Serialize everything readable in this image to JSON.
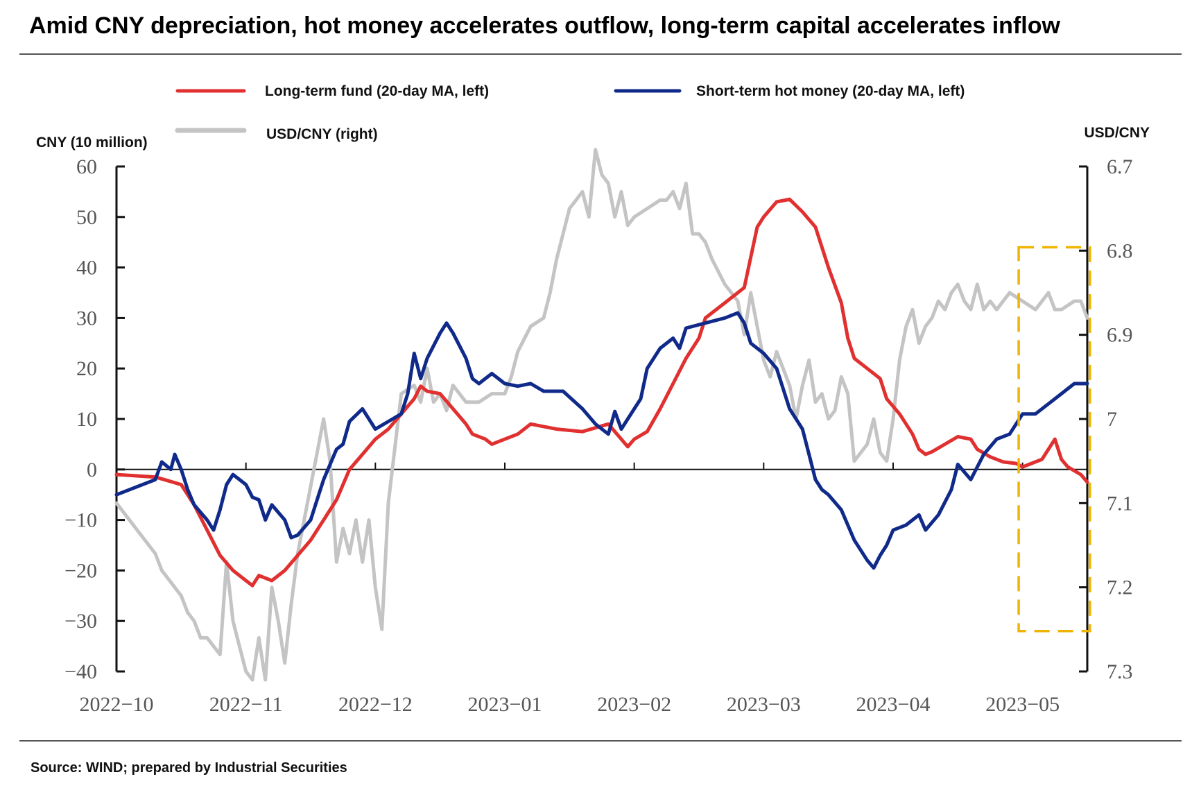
{
  "title": "Amid CNY depreciation, hot money accelerates outflow, long-term capital accelerates inflow",
  "source": "Source: WIND; prepared by Industrial Securities",
  "colors": {
    "long_term": "#e03030",
    "hot_money": "#102a8a",
    "usdcny": "#c4c4c4",
    "highlight": "#f0b400",
    "axis": "#111111"
  },
  "chart_data": {
    "type": "line",
    "left_axis_label": "CNY (10 million)",
    "right_axis_label": "USD/CNY",
    "left_ticks": [
      "60",
      "50",
      "40",
      "30",
      "20",
      "10",
      "0",
      "−10",
      "−20",
      "−30",
      "−40"
    ],
    "right_ticks": [
      "6.7",
      "6.8",
      "6.9",
      "7",
      "7.1",
      "7.2",
      "7.3"
    ],
    "ylim_left": [
      -40,
      60
    ],
    "ylim_right": [
      7.3,
      6.7
    ],
    "right_axis_inverted": true,
    "x_ticks": [
      "2022−10",
      "2022−11",
      "2022−12",
      "2023−01",
      "2023−02",
      "2023−03",
      "2023−04",
      "2023−05"
    ],
    "x_range": [
      0,
      7.5
    ],
    "legend": [
      {
        "label": "Long-term fund (20-day MA, left)",
        "series": "long_term"
      },
      {
        "label": "Short-term hot money (20-day MA, left)",
        "series": "hot_money"
      },
      {
        "label": "USD/CNY (right)",
        "series": "usdcny"
      }
    ],
    "highlight_box": {
      "x": [
        6.97,
        7.52
      ],
      "y_left": [
        -32,
        44
      ]
    },
    "series": [
      {
        "key": "long_term",
        "name": "Long-term fund (20-day MA, left)",
        "axis": "left",
        "points": [
          [
            0,
            -1
          ],
          [
            0.3,
            -1.5
          ],
          [
            0.5,
            -3
          ],
          [
            0.6,
            -7
          ],
          [
            0.7,
            -12
          ],
          [
            0.8,
            -17
          ],
          [
            0.9,
            -20
          ],
          [
            1.0,
            -22
          ],
          [
            1.05,
            -23
          ],
          [
            1.1,
            -21
          ],
          [
            1.2,
            -22
          ],
          [
            1.3,
            -20
          ],
          [
            1.4,
            -17
          ],
          [
            1.5,
            -14
          ],
          [
            1.6,
            -10
          ],
          [
            1.7,
            -6
          ],
          [
            1.8,
            0
          ],
          [
            1.9,
            3
          ],
          [
            2.0,
            6
          ],
          [
            2.1,
            8
          ],
          [
            2.2,
            11
          ],
          [
            2.3,
            14
          ],
          [
            2.35,
            16.5
          ],
          [
            2.4,
            15.5
          ],
          [
            2.5,
            15
          ],
          [
            2.55,
            13.5
          ],
          [
            2.6,
            12
          ],
          [
            2.7,
            9
          ],
          [
            2.75,
            7
          ],
          [
            2.85,
            6
          ],
          [
            2.9,
            5
          ],
          [
            3.0,
            6
          ],
          [
            3.1,
            7
          ],
          [
            3.2,
            9
          ],
          [
            3.3,
            8.5
          ],
          [
            3.4,
            8
          ],
          [
            3.6,
            7.5
          ],
          [
            3.8,
            9
          ],
          [
            3.9,
            6
          ],
          [
            3.95,
            4.5
          ],
          [
            4.0,
            6
          ],
          [
            4.1,
            7.5
          ],
          [
            4.2,
            12
          ],
          [
            4.3,
            17
          ],
          [
            4.4,
            22
          ],
          [
            4.5,
            26
          ],
          [
            4.55,
            30
          ],
          [
            4.7,
            33
          ],
          [
            4.85,
            36
          ],
          [
            4.95,
            48
          ],
          [
            5.0,
            50
          ],
          [
            5.1,
            53
          ],
          [
            5.2,
            53.5
          ],
          [
            5.3,
            51
          ],
          [
            5.4,
            48
          ],
          [
            5.5,
            40
          ],
          [
            5.6,
            33
          ],
          [
            5.65,
            26
          ],
          [
            5.7,
            22
          ],
          [
            5.8,
            20
          ],
          [
            5.9,
            18
          ],
          [
            5.95,
            14
          ],
          [
            6.05,
            11
          ],
          [
            6.1,
            9
          ],
          [
            6.15,
            7
          ],
          [
            6.2,
            4
          ],
          [
            6.25,
            3
          ],
          [
            6.3,
            3.5
          ],
          [
            6.4,
            5
          ],
          [
            6.5,
            6.5
          ],
          [
            6.6,
            6
          ],
          [
            6.65,
            4
          ],
          [
            6.75,
            2.5
          ],
          [
            6.85,
            1.5
          ],
          [
            6.95,
            1.2
          ],
          [
            7.0,
            0.5
          ],
          [
            7.05,
            1
          ],
          [
            7.15,
            2
          ],
          [
            7.25,
            6
          ],
          [
            7.3,
            2
          ],
          [
            7.35,
            0.5
          ],
          [
            7.45,
            -1
          ],
          [
            7.5,
            -2.5
          ]
        ]
      },
      {
        "key": "hot_money",
        "name": "Short-term hot money (20-day MA, left)",
        "axis": "left",
        "points": [
          [
            0,
            -5
          ],
          [
            0.3,
            -2
          ],
          [
            0.35,
            1.5
          ],
          [
            0.42,
            0
          ],
          [
            0.45,
            3
          ],
          [
            0.5,
            0
          ],
          [
            0.55,
            -4
          ],
          [
            0.6,
            -7
          ],
          [
            0.7,
            -10
          ],
          [
            0.75,
            -12
          ],
          [
            0.8,
            -8
          ],
          [
            0.85,
            -3
          ],
          [
            0.9,
            -1
          ],
          [
            1.0,
            -3
          ],
          [
            1.05,
            -5.5
          ],
          [
            1.1,
            -6
          ],
          [
            1.15,
            -10
          ],
          [
            1.2,
            -7
          ],
          [
            1.3,
            -10
          ],
          [
            1.35,
            -13.5
          ],
          [
            1.4,
            -13
          ],
          [
            1.5,
            -10
          ],
          [
            1.55,
            -6
          ],
          [
            1.6,
            -2
          ],
          [
            1.7,
            4
          ],
          [
            1.75,
            5
          ],
          [
            1.8,
            9.5
          ],
          [
            1.9,
            12
          ],
          [
            2.0,
            8
          ],
          [
            2.1,
            9.5
          ],
          [
            2.2,
            11
          ],
          [
            2.25,
            15
          ],
          [
            2.3,
            23
          ],
          [
            2.35,
            18
          ],
          [
            2.4,
            22
          ],
          [
            2.5,
            27
          ],
          [
            2.55,
            29
          ],
          [
            2.6,
            27
          ],
          [
            2.7,
            22
          ],
          [
            2.75,
            18
          ],
          [
            2.8,
            17
          ],
          [
            2.9,
            19
          ],
          [
            3.0,
            17
          ],
          [
            3.1,
            16.5
          ],
          [
            3.2,
            17
          ],
          [
            3.3,
            15.5
          ],
          [
            3.45,
            15.5
          ],
          [
            3.6,
            12
          ],
          [
            3.7,
            9
          ],
          [
            3.8,
            7
          ],
          [
            3.85,
            11.5
          ],
          [
            3.9,
            8
          ],
          [
            3.95,
            10
          ],
          [
            4.05,
            14
          ],
          [
            4.1,
            20
          ],
          [
            4.2,
            24
          ],
          [
            4.3,
            26
          ],
          [
            4.35,
            24
          ],
          [
            4.4,
            28
          ],
          [
            4.55,
            29
          ],
          [
            4.7,
            30
          ],
          [
            4.8,
            31
          ],
          [
            4.85,
            29
          ],
          [
            4.9,
            25
          ],
          [
            5.0,
            23
          ],
          [
            5.1,
            20
          ],
          [
            5.2,
            12
          ],
          [
            5.3,
            8
          ],
          [
            5.35,
            3
          ],
          [
            5.4,
            -2
          ],
          [
            5.45,
            -4
          ],
          [
            5.5,
            -5
          ],
          [
            5.6,
            -8
          ],
          [
            5.7,
            -14
          ],
          [
            5.8,
            -18
          ],
          [
            5.85,
            -19.5
          ],
          [
            5.9,
            -17
          ],
          [
            5.95,
            -15
          ],
          [
            6.0,
            -12
          ],
          [
            6.1,
            -11
          ],
          [
            6.2,
            -9
          ],
          [
            6.25,
            -12
          ],
          [
            6.35,
            -9
          ],
          [
            6.45,
            -4
          ],
          [
            6.5,
            1
          ],
          [
            6.6,
            -2
          ],
          [
            6.7,
            3
          ],
          [
            6.8,
            6
          ],
          [
            6.9,
            7
          ],
          [
            7.0,
            11
          ],
          [
            7.1,
            11
          ],
          [
            7.2,
            13
          ],
          [
            7.3,
            15
          ],
          [
            7.4,
            17
          ],
          [
            7.5,
            17
          ]
        ]
      },
      {
        "key": "usdcny",
        "name": "USD/CNY (right)",
        "axis": "right",
        "points": [
          [
            0,
            7.1
          ],
          [
            0.1,
            7.12
          ],
          [
            0.2,
            7.14
          ],
          [
            0.3,
            7.16
          ],
          [
            0.35,
            7.18
          ],
          [
            0.4,
            7.19
          ],
          [
            0.45,
            7.2
          ],
          [
            0.5,
            7.21
          ],
          [
            0.55,
            7.23
          ],
          [
            0.6,
            7.24
          ],
          [
            0.65,
            7.26
          ],
          [
            0.7,
            7.26
          ],
          [
            0.75,
            7.27
          ],
          [
            0.8,
            7.28
          ],
          [
            0.85,
            7.17
          ],
          [
            0.9,
            7.24
          ],
          [
            0.95,
            7.27
          ],
          [
            1.0,
            7.3
          ],
          [
            1.05,
            7.31
          ],
          [
            1.1,
            7.26
          ],
          [
            1.15,
            7.31
          ],
          [
            1.2,
            7.2
          ],
          [
            1.25,
            7.24
          ],
          [
            1.3,
            7.29
          ],
          [
            1.35,
            7.22
          ],
          [
            1.4,
            7.16
          ],
          [
            1.5,
            7.08
          ],
          [
            1.6,
            7.0
          ],
          [
            1.65,
            7.05
          ],
          [
            1.7,
            7.17
          ],
          [
            1.75,
            7.13
          ],
          [
            1.8,
            7.16
          ],
          [
            1.85,
            7.12
          ],
          [
            1.9,
            7.17
          ],
          [
            1.95,
            7.12
          ],
          [
            2.0,
            7.2
          ],
          [
            2.05,
            7.25
          ],
          [
            2.1,
            7.1
          ],
          [
            2.2,
            6.97
          ],
          [
            2.3,
            6.96
          ],
          [
            2.35,
            6.98
          ],
          [
            2.4,
            6.94
          ],
          [
            2.45,
            6.98
          ],
          [
            2.5,
            6.97
          ],
          [
            2.55,
            6.99
          ],
          [
            2.6,
            6.96
          ],
          [
            2.7,
            6.98
          ],
          [
            2.8,
            6.98
          ],
          [
            2.9,
            6.97
          ],
          [
            3.0,
            6.97
          ],
          [
            3.05,
            6.95
          ],
          [
            3.1,
            6.92
          ],
          [
            3.2,
            6.89
          ],
          [
            3.3,
            6.88
          ],
          [
            3.35,
            6.85
          ],
          [
            3.4,
            6.81
          ],
          [
            3.5,
            6.75
          ],
          [
            3.6,
            6.73
          ],
          [
            3.65,
            6.76
          ],
          [
            3.7,
            6.68
          ],
          [
            3.75,
            6.71
          ],
          [
            3.8,
            6.72
          ],
          [
            3.85,
            6.76
          ],
          [
            3.9,
            6.73
          ],
          [
            3.95,
            6.77
          ],
          [
            4.0,
            6.76
          ],
          [
            4.1,
            6.75
          ],
          [
            4.2,
            6.74
          ],
          [
            4.25,
            6.74
          ],
          [
            4.3,
            6.73
          ],
          [
            4.35,
            6.75
          ],
          [
            4.4,
            6.72
          ],
          [
            4.45,
            6.78
          ],
          [
            4.5,
            6.78
          ],
          [
            4.55,
            6.79
          ],
          [
            4.6,
            6.81
          ],
          [
            4.7,
            6.84
          ],
          [
            4.8,
            6.86
          ],
          [
            4.85,
            6.9
          ],
          [
            4.9,
            6.85
          ],
          [
            4.95,
            6.89
          ],
          [
            5.0,
            6.93
          ],
          [
            5.05,
            6.95
          ],
          [
            5.1,
            6.92
          ],
          [
            5.15,
            6.94
          ],
          [
            5.2,
            6.96
          ],
          [
            5.25,
            7.0
          ],
          [
            5.3,
            6.96
          ],
          [
            5.35,
            6.93
          ],
          [
            5.4,
            6.98
          ],
          [
            5.45,
            6.97
          ],
          [
            5.5,
            7.0
          ],
          [
            5.55,
            6.99
          ],
          [
            5.6,
            6.95
          ],
          [
            5.65,
            6.97
          ],
          [
            5.7,
            7.05
          ],
          [
            5.8,
            7.03
          ],
          [
            5.85,
            7.0
          ],
          [
            5.9,
            7.04
          ],
          [
            5.95,
            7.05
          ],
          [
            6.0,
            7.0
          ],
          [
            6.05,
            6.93
          ],
          [
            6.1,
            6.89
          ],
          [
            6.15,
            6.87
          ],
          [
            6.2,
            6.91
          ],
          [
            6.25,
            6.89
          ],
          [
            6.3,
            6.88
          ],
          [
            6.35,
            6.86
          ],
          [
            6.4,
            6.87
          ],
          [
            6.45,
            6.85
          ],
          [
            6.5,
            6.84
          ],
          [
            6.55,
            6.86
          ],
          [
            6.6,
            6.87
          ],
          [
            6.65,
            6.84
          ],
          [
            6.7,
            6.87
          ],
          [
            6.75,
            6.86
          ],
          [
            6.8,
            6.87
          ],
          [
            6.9,
            6.85
          ],
          [
            7.0,
            6.86
          ],
          [
            7.1,
            6.87
          ],
          [
            7.2,
            6.85
          ],
          [
            7.25,
            6.87
          ],
          [
            7.3,
            6.87
          ],
          [
            7.4,
            6.86
          ],
          [
            7.45,
            6.86
          ],
          [
            7.5,
            6.88
          ]
        ]
      }
    ]
  }
}
